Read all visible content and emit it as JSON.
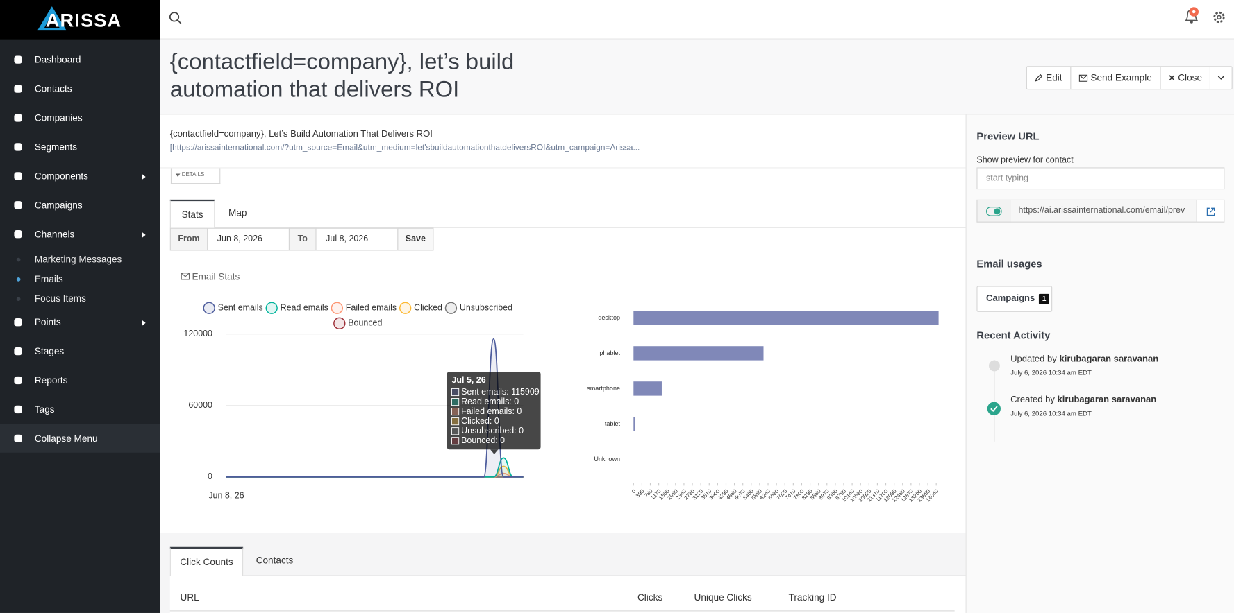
{
  "brand": "ARISSA",
  "nav": {
    "main": [
      "Dashboard",
      "Contacts",
      "Companies",
      "Segments",
      "Components",
      "Campaigns",
      "Channels"
    ],
    "channels": [
      "Marketing Messages",
      "Emails",
      "Focus Items"
    ],
    "more": [
      "Points",
      "Stages",
      "Reports",
      "Tags",
      "Collapse Menu"
    ]
  },
  "title": "{contactfield=company}, let’s build automation that delivers ROI",
  "buttons": [
    "Edit",
    "Send Example",
    "Close"
  ],
  "subject": "{contactfield=company}, Let’s Build Automation That Delivers ROI",
  "url": "[https://arissainternational.com/?utm_source=Email&utm_medium=let'sbuildautomationthatdeliversROI&utm_campaign=Arissa...",
  "details": "DETAILS",
  "tabs": [
    "Stats",
    "Map"
  ],
  "filter": {
    "from_label": "From",
    "from": "Jun 8, 2026",
    "to_label": "To",
    "to": "Jul 8, 2026",
    "save": "Save"
  },
  "stats_title": "Email Stats",
  "chart_data": [
    {
      "type": "line",
      "categories": [
        "Jun 8, 26",
        null,
        null,
        null,
        null,
        null,
        null,
        null,
        null,
        null,
        null,
        null,
        null,
        null,
        null,
        null,
        null,
        null,
        null,
        null,
        null,
        null,
        null,
        null,
        null,
        null,
        null,
        null,
        null,
        null,
        null
      ],
      "series": [
        {
          "name": "Sent emails",
          "color": "#4e5d9d",
          "values": [
            0,
            0,
            0,
            0,
            0,
            0,
            0,
            0,
            0,
            0,
            0,
            0,
            0,
            0,
            0,
            0,
            0,
            0,
            0,
            0,
            0,
            0,
            0,
            0,
            0,
            0,
            0,
            115909,
            0,
            0,
            0
          ]
        },
        {
          "name": "Read emails",
          "color": "#00b49c",
          "values": [
            0,
            0,
            0,
            0,
            0,
            0,
            0,
            0,
            0,
            0,
            0,
            0,
            0,
            0,
            0,
            0,
            0,
            0,
            0,
            0,
            0,
            0,
            0,
            0,
            0,
            0,
            0,
            0,
            16000,
            0,
            0
          ]
        },
        {
          "name": "Failed emails",
          "color": "#fd9572",
          "values": [
            0,
            0,
            0,
            0,
            0,
            0,
            0,
            0,
            0,
            0,
            0,
            0,
            0,
            0,
            0,
            0,
            0,
            0,
            0,
            0,
            0,
            0,
            0,
            0,
            0,
            0,
            0,
            0,
            3000,
            0,
            0
          ]
        },
        {
          "name": "Clicked",
          "color": "#fdb933",
          "values": [
            0,
            0,
            0,
            0,
            0,
            0,
            0,
            0,
            0,
            0,
            0,
            0,
            0,
            0,
            0,
            0,
            0,
            0,
            0,
            0,
            0,
            0,
            0,
            0,
            0,
            0,
            0,
            0,
            9000,
            0,
            0
          ]
        },
        {
          "name": "Unsubscribed",
          "color": "#757575",
          "values": [
            0,
            0,
            0,
            0,
            0,
            0,
            0,
            0,
            0,
            0,
            0,
            0,
            0,
            0,
            0,
            0,
            0,
            0,
            0,
            0,
            0,
            0,
            0,
            0,
            0,
            0,
            0,
            0,
            0,
            0,
            0
          ]
        },
        {
          "name": "Bounced",
          "color": "#9d2e37",
          "values": [
            0,
            0,
            0,
            0,
            0,
            0,
            0,
            0,
            0,
            0,
            0,
            0,
            0,
            0,
            0,
            0,
            0,
            0,
            0,
            0,
            0,
            0,
            0,
            0,
            0,
            0,
            0,
            0,
            0,
            0,
            0
          ]
        }
      ],
      "ylim": [
        0,
        120000
      ],
      "yticks": [
        0,
        60000,
        120000
      ],
      "grid": true
    },
    {
      "type": "hbar",
      "categories": [
        "desktop",
        "phablet",
        "smartphone",
        "tablet",
        "Unknown"
      ],
      "values": [
        14150,
        6030,
        1310,
        70,
        0
      ],
      "color": "#8088b8",
      "xlim": [
        0,
        14200
      ],
      "xticks": [
        0,
        390,
        780,
        1170,
        1560,
        1950,
        2340,
        2730,
        3120,
        3510,
        3900,
        4290,
        4680,
        5070,
        5460,
        5850,
        6240,
        6630,
        7020,
        7410,
        7800,
        8190,
        8580,
        8970,
        9360,
        9750,
        10140,
        10530,
        10920,
        11310,
        11700,
        12090,
        12480,
        12870,
        13260,
        13650,
        14040
      ]
    }
  ],
  "tooltip": {
    "title": "Jul 5, 26",
    "lines": [
      "Sent emails: 115909",
      "Read emails: 0",
      "Failed emails: 0",
      "Clicked: 0",
      "Unsubscribed: 0",
      "Bounced: 0"
    ]
  },
  "preview": {
    "title": "Preview URL",
    "label": "Show preview for contact",
    "placeholder": "start typing",
    "url": "https://ai.arissainternational.com/email/prev"
  },
  "usages": {
    "title": "Email usages",
    "campaigns": "Campaigns",
    "count": 1
  },
  "activity": {
    "title": "Recent Activity",
    "items": [
      {
        "action": "Updated by",
        "user": "kirubagaran saravanan",
        "date": "July 6, 2026 10:34 am EDT"
      },
      {
        "action": "Created by",
        "user": "kirubagaran saravanan",
        "date": "July 6, 2026 10:34 am EDT"
      }
    ]
  },
  "bottom_tabs": [
    "Click Counts",
    "Contacts"
  ],
  "table": {
    "headers": [
      "URL",
      "Clicks",
      "Unique Clicks",
      "Tracking ID"
    ]
  }
}
